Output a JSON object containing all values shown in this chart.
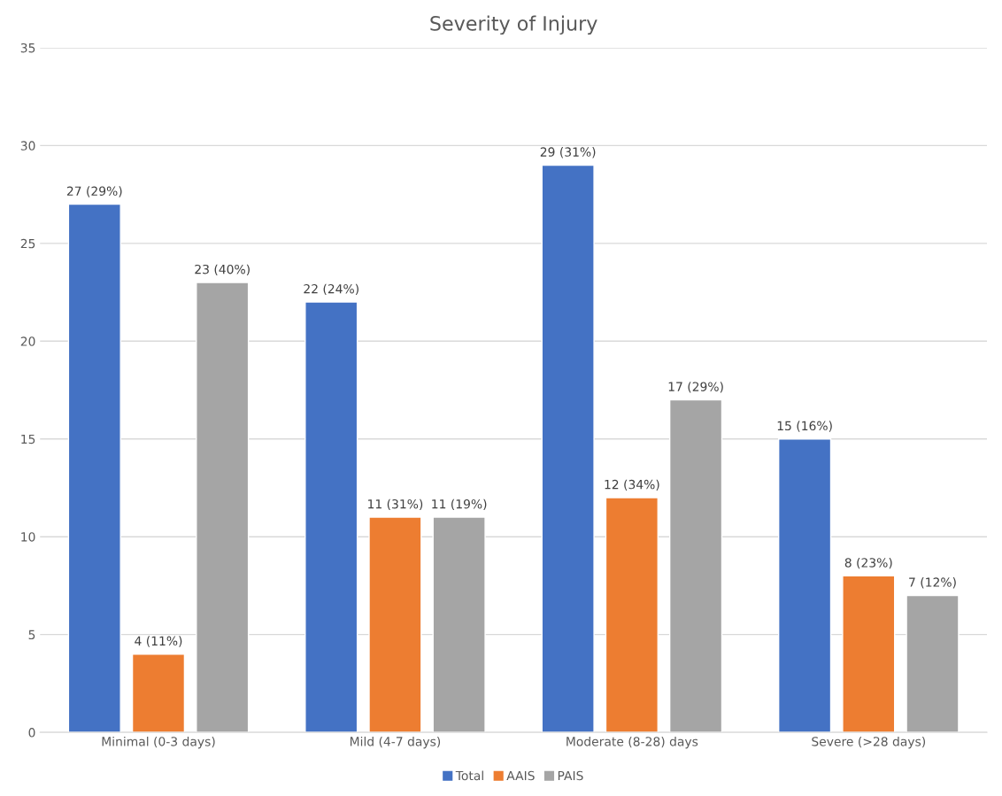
{
  "chart_data": {
    "type": "bar",
    "title": "Severity of Injury",
    "categories": [
      "Minimal (0-3 days)",
      "Mild (4-7 days)",
      "Moderate (8-28) days",
      "Severe (>28 days)"
    ],
    "series": [
      {
        "name": "Total",
        "color": "#4472c4",
        "values": [
          27,
          22,
          29,
          15
        ],
        "value_labels": [
          "27 (29%)",
          "22 (24%)",
          "29 (31%)",
          "15 (16%)"
        ]
      },
      {
        "name": "AAIS",
        "color": "#ed7d31",
        "values": [
          4,
          11,
          12,
          8
        ],
        "value_labels": [
          "4 (11%)",
          "11 (31%)",
          "12 (34%)",
          "8 (23%)"
        ]
      },
      {
        "name": "PAIS",
        "color": "#a5a5a5",
        "values": [
          23,
          11,
          17,
          7
        ],
        "value_labels": [
          "23 (40%)",
          "11 (19%)",
          "17 (29%)",
          "7 (12%)"
        ]
      }
    ],
    "ylim": [
      0,
      35
    ],
    "yticks": [
      0,
      5,
      10,
      15,
      20,
      25,
      30,
      35
    ],
    "grid": "y",
    "legend": "bottom"
  }
}
